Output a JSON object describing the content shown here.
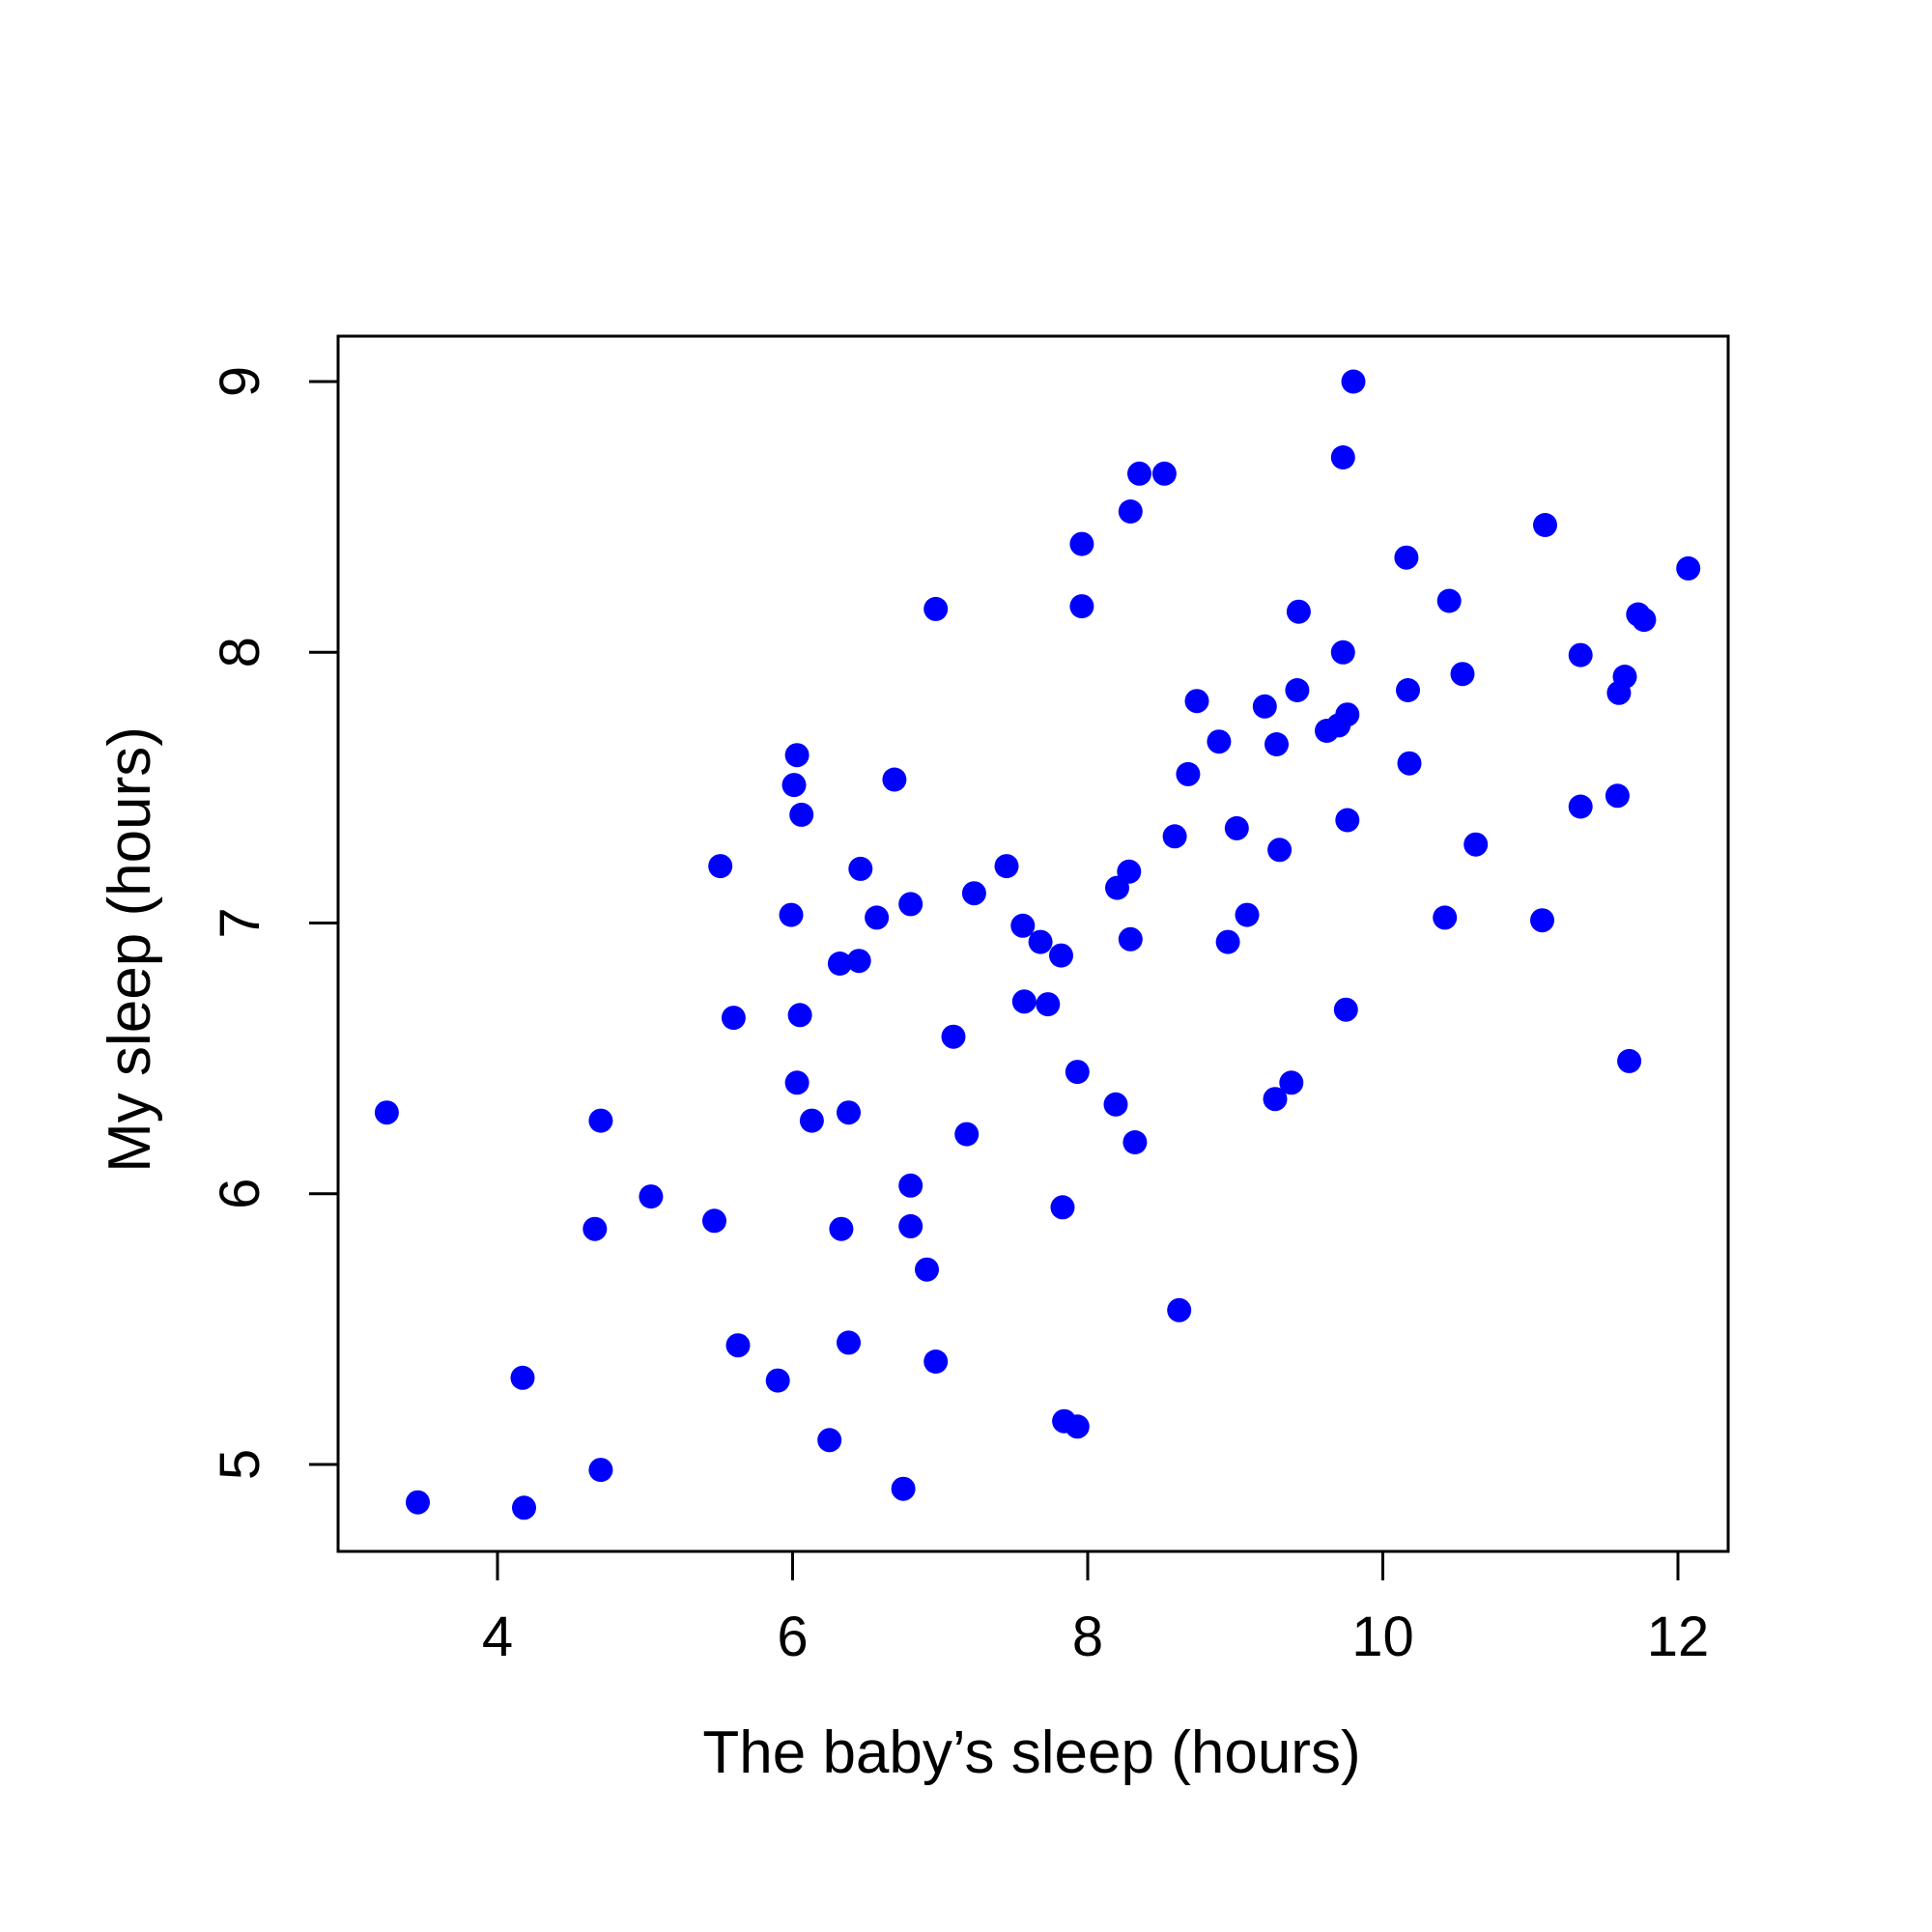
{
  "chart_data": {
    "type": "scatter",
    "title": "",
    "xlabel": "The baby’s sleep (hours)",
    "ylabel": "My sleep (hours)",
    "xlim": [
      2.9,
      12.4
    ],
    "ylim": [
      4.67,
      9.17
    ],
    "x_ticks": [
      4,
      6,
      8,
      10,
      12
    ],
    "y_ticks": [
      5,
      6,
      7,
      8,
      9
    ],
    "x_tick_labels": [
      "4",
      "6",
      "8",
      "10",
      "12"
    ],
    "y_tick_labels": [
      "5",
      "6",
      "7",
      "8",
      "9"
    ],
    "grid": false,
    "legend": "none",
    "series": [
      {
        "color": "#0000ff",
        "points": [
          [
            3.25,
            6.3
          ],
          [
            3.46,
            4.86
          ],
          [
            4.17,
            5.32
          ],
          [
            4.18,
            4.84
          ],
          [
            4.66,
            5.87
          ],
          [
            4.7,
            6.27
          ],
          [
            4.7,
            4.98
          ],
          [
            5.04,
            5.99
          ],
          [
            5.47,
            5.9
          ],
          [
            5.51,
            7.21
          ],
          [
            5.6,
            6.65
          ],
          [
            5.63,
            5.44
          ],
          [
            5.9,
            5.31
          ],
          [
            5.99,
            7.03
          ],
          [
            6.01,
            7.51
          ],
          [
            6.03,
            7.62
          ],
          [
            6.03,
            6.41
          ],
          [
            6.05,
            6.66
          ],
          [
            6.06,
            7.4
          ],
          [
            6.13,
            6.27
          ],
          [
            6.25,
            5.09
          ],
          [
            6.32,
            6.85
          ],
          [
            6.33,
            5.87
          ],
          [
            6.38,
            6.3
          ],
          [
            6.38,
            5.45
          ],
          [
            6.45,
            6.86
          ],
          [
            6.46,
            7.2
          ],
          [
            6.57,
            7.02
          ],
          [
            6.69,
            7.53
          ],
          [
            6.75,
            4.91
          ],
          [
            6.8,
            7.07
          ],
          [
            6.8,
            6.03
          ],
          [
            6.8,
            5.88
          ],
          [
            6.91,
            5.72
          ],
          [
            6.97,
            8.16
          ],
          [
            6.97,
            5.38
          ],
          [
            7.09,
            6.58
          ],
          [
            7.18,
            6.22
          ],
          [
            7.23,
            7.11
          ],
          [
            7.45,
            7.21
          ],
          [
            7.56,
            6.99
          ],
          [
            7.57,
            6.71
          ],
          [
            7.68,
            6.93
          ],
          [
            7.73,
            6.7
          ],
          [
            7.82,
            6.88
          ],
          [
            7.83,
            5.95
          ],
          [
            7.84,
            5.16
          ],
          [
            7.93,
            6.45
          ],
          [
            7.93,
            5.14
          ],
          [
            7.96,
            8.4
          ],
          [
            7.96,
            8.17
          ],
          [
            8.19,
            6.33
          ],
          [
            8.2,
            7.13
          ],
          [
            8.28,
            7.19
          ],
          [
            8.29,
            8.52
          ],
          [
            8.29,
            6.94
          ],
          [
            8.32,
            6.19
          ],
          [
            8.35,
            8.66
          ],
          [
            8.52,
            8.66
          ],
          [
            8.59,
            7.32
          ],
          [
            8.62,
            5.57
          ],
          [
            8.68,
            7.55
          ],
          [
            8.74,
            7.82
          ],
          [
            8.89,
            7.67
          ],
          [
            8.95,
            6.93
          ],
          [
            9.01,
            7.35
          ],
          [
            9.08,
            7.03
          ],
          [
            9.2,
            7.8
          ],
          [
            9.27,
            6.35
          ],
          [
            9.28,
            7.66
          ],
          [
            9.3,
            7.27
          ],
          [
            9.38,
            6.41
          ],
          [
            9.42,
            7.86
          ],
          [
            9.43,
            8.15
          ],
          [
            9.62,
            7.71
          ],
          [
            9.7,
            7.73
          ],
          [
            9.73,
            8.72
          ],
          [
            9.73,
            8.0
          ],
          [
            9.75,
            6.68
          ],
          [
            9.76,
            7.38
          ],
          [
            9.76,
            7.77
          ],
          [
            9.8,
            9.0
          ],
          [
            10.16,
            8.35
          ],
          [
            10.17,
            7.86
          ],
          [
            10.18,
            7.59
          ],
          [
            10.42,
            7.02
          ],
          [
            10.45,
            8.19
          ],
          [
            10.54,
            7.92
          ],
          [
            10.63,
            7.29
          ],
          [
            11.08,
            7.01
          ],
          [
            11.1,
            8.47
          ],
          [
            11.34,
            7.99
          ],
          [
            11.34,
            7.43
          ],
          [
            11.59,
            7.47
          ],
          [
            11.6,
            7.85
          ],
          [
            11.64,
            7.91
          ],
          [
            11.67,
            6.49
          ],
          [
            11.73,
            8.14
          ],
          [
            11.77,
            8.12
          ],
          [
            12.07,
            8.31
          ]
        ]
      }
    ]
  }
}
